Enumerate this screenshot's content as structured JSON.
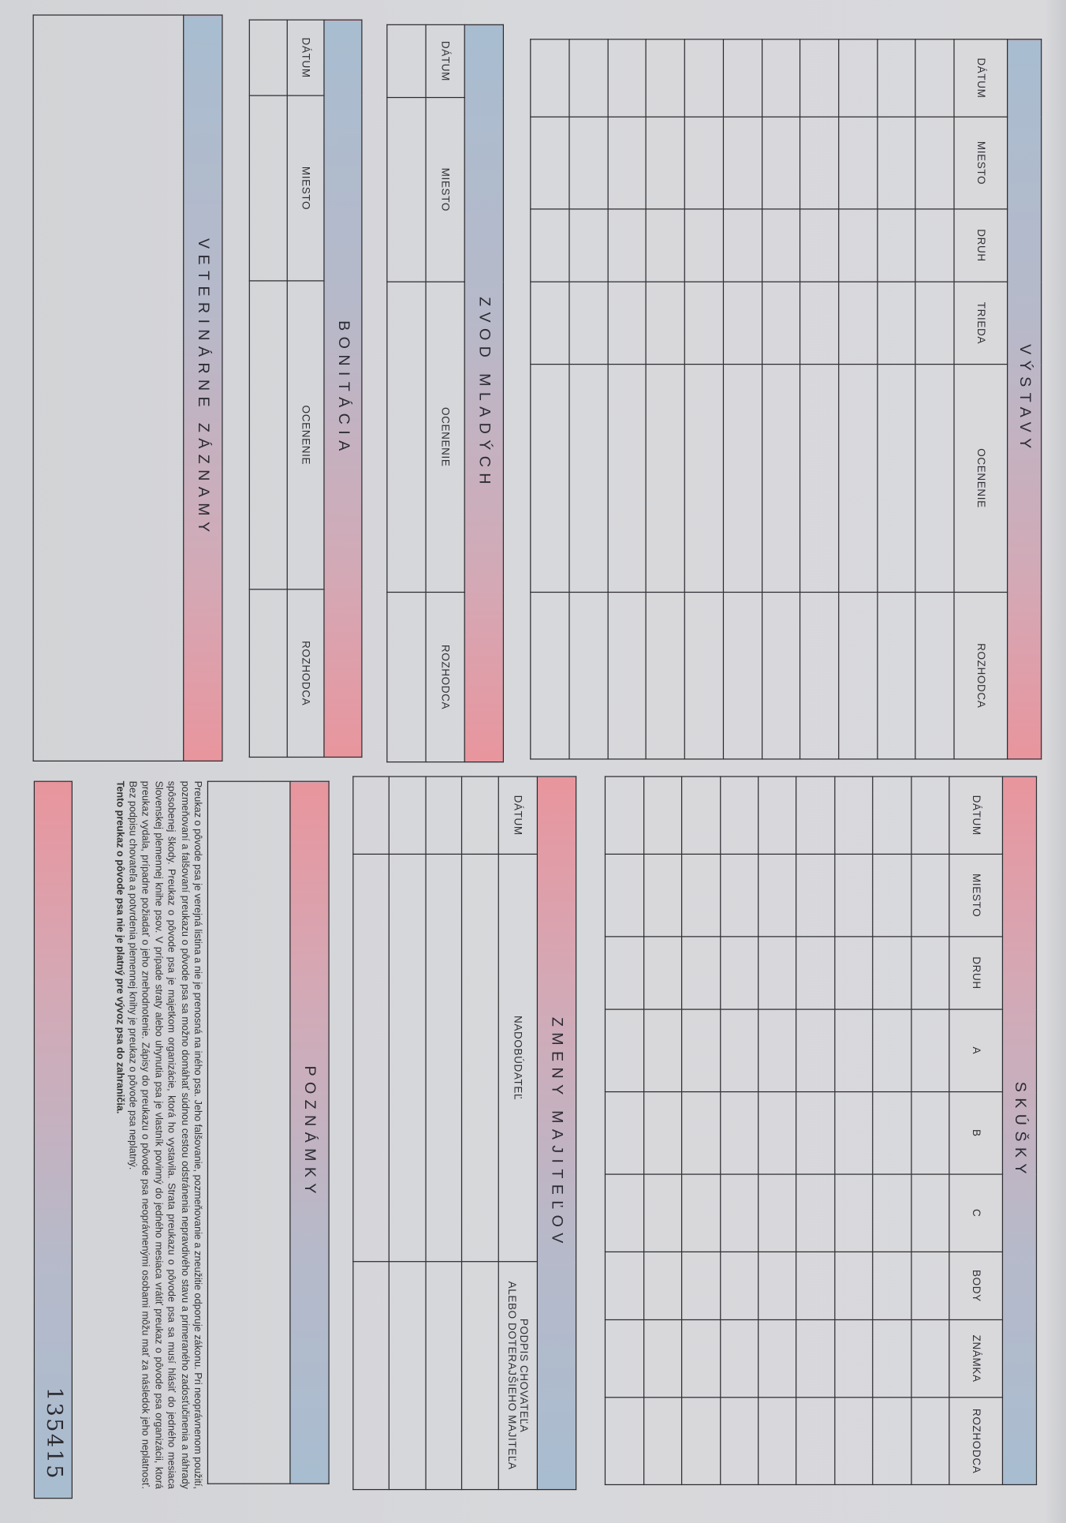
{
  "vystavy": {
    "title": "VÝSTAVY",
    "columns": [
      "DÁTUM",
      "MIESTO",
      "DRUH",
      "TRIEDA",
      "OCENENIE",
      "ROZHODCA"
    ]
  },
  "zvod_mladych": {
    "title": "ZVOD MLADÝCH",
    "columns": [
      "DÁTUM",
      "MIESTO",
      "OCENENIE",
      "ROZHODCA"
    ]
  },
  "bonitacia": {
    "title": "BONITÁCIA",
    "columns": [
      "DÁTUM",
      "MIESTO",
      "OCENENIE",
      "ROZHODCA"
    ]
  },
  "veterinarne_zaznamy": {
    "title": "VETERINÁRNE ZÁZNAMY"
  },
  "skusky": {
    "title": "SKÚŠKY",
    "columns": [
      "DÁTUM",
      "MIESTO",
      "DRUH",
      "A",
      "B",
      "C",
      "BODY",
      "ZNÁMKA",
      "ROZHODCA"
    ]
  },
  "zmeny_majitelov": {
    "title": "ZMENY MAJITEĽOV",
    "columns": [
      "DÁTUM",
      "NADOBÚDATEĽ",
      "PODPIS CHOVATEĽA",
      "ALEBO DOTERAJŠIEHO MAJITEĽA"
    ]
  },
  "poznamky": {
    "title": "POZNÁMKY",
    "legal_text": "Preukaz o pôvode psa je verejná listina a nie je prenosná na iného psa. Jeho falšovanie, pozmeňovanie a zneužitie odporuje zákonu. Pri neoprávnenom použití, pozmeňovaní a falšovaní preukazu o pôvode psa sa možno domáhať súdnou cestou odstránenia nepravdivého stavu a primeraného zadosťučinenia a náhrady spôsobenej škody. Preukaz o pôvode psa je majetkom organizácie, ktorá ho vystavila. Strata preukazu o pôvode psa sa musí hlásiť do jedného mesiaca Slovenskej plemennej knihe psov. V prípade straty alebo uhynutia psa je vlastník povinný do jedného mesiaca vrátiť preukaz o pôvode psa organizácii, ktorá preukaz vydala, prípadne požiadať o jeho znehodnotenie. Zápisy do preukazu o pôvode psa neoprávnenými osobami môžu mať za následok jeho neplatnosť. Bez podpisu chovateľa a potvrdenia plemennej knihy je preukaz o pôvode psa neplatný.",
    "legal_text_bold": "Tento preukaz o pôvode psa nie je platný pre vývoz psa do zahraničia."
  },
  "serial_number": "135415",
  "colors": {
    "gradient_blue": "#a8bdd0",
    "gradient_pink": "#e9959d",
    "paper": "#d7d8db",
    "lines": "#2c2c30"
  }
}
